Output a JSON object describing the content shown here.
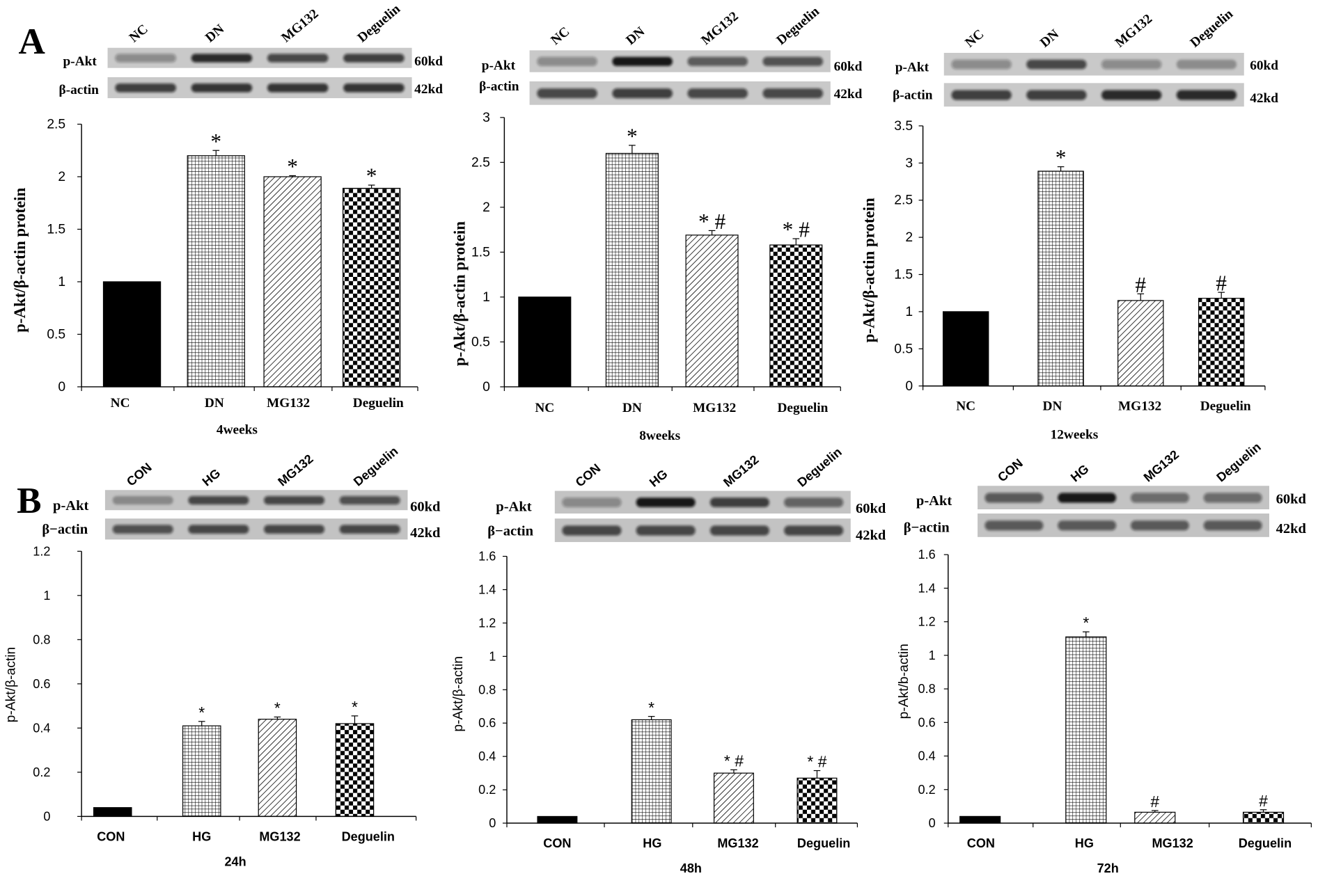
{
  "panel_labels": [
    "A",
    "B"
  ],
  "chart_data": [
    {
      "type": "bar",
      "categories": [
        "NC",
        "DN",
        "MG132",
        "Deguelin"
      ],
      "values": [
        1.0,
        2.2,
        2.0,
        1.89
      ],
      "errors": [
        0,
        0.05,
        0.01,
        0.03
      ],
      "annotations": [
        "",
        "*",
        "*",
        "*"
      ],
      "xlabel": "4weeks",
      "ylabel": "p-Akt/β-actin protein",
      "ylim": [
        0,
        2.5
      ],
      "yticks": [
        0,
        0.5,
        1,
        1.5,
        2,
        2.5
      ],
      "ytick_labels": [
        "0",
        "0.5",
        "1",
        "1.5",
        "2",
        "2.5"
      ],
      "blot": {
        "lanes": [
          "NC",
          "DN",
          "MG132",
          "Deguelin"
        ],
        "rows": [
          {
            "label": "p-Akt",
            "size": "60kd",
            "intensity": [
              0.35,
              0.85,
              0.7,
              0.75
            ]
          },
          {
            "label": "β-actin",
            "size": "42kd",
            "intensity": [
              0.75,
              0.8,
              0.8,
              0.8
            ]
          }
        ]
      }
    },
    {
      "type": "bar",
      "categories": [
        "NC",
        "DN",
        "MG132",
        "Deguelin"
      ],
      "values": [
        1.0,
        2.6,
        1.69,
        1.58
      ],
      "errors": [
        0,
        0.09,
        0.05,
        0.07
      ],
      "annotations": [
        "",
        "*",
        "* #",
        "* #"
      ],
      "xlabel": "8weeks",
      "ylabel": "p-Akt/β-actin protein",
      "ylim": [
        0,
        3
      ],
      "yticks": [
        0,
        0.5,
        1,
        1.5,
        2,
        2.5,
        3
      ],
      "ytick_labels": [
        "0",
        "0.5",
        "1",
        "1.5",
        "2",
        "2.5",
        "3"
      ],
      "blot": {
        "lanes": [
          "NC",
          "DN",
          "MG132",
          "Deguelin"
        ],
        "rows": [
          {
            "label": "p-Akt",
            "size": "60kd",
            "intensity": [
              0.35,
              0.95,
              0.6,
              0.65
            ]
          },
          {
            "label": "β-actin",
            "size": "42kd",
            "intensity": [
              0.7,
              0.75,
              0.7,
              0.7
            ]
          }
        ]
      }
    },
    {
      "type": "bar",
      "categories": [
        "NC",
        "DN",
        "MG132",
        "Deguelin"
      ],
      "values": [
        1.0,
        2.89,
        1.15,
        1.18
      ],
      "errors": [
        0,
        0.06,
        0.09,
        0.08
      ],
      "annotations": [
        "",
        "*",
        "#",
        "#"
      ],
      "xlabel": "12weeks",
      "ylabel": "p-Akt/β-actin protein",
      "ylim": [
        0,
        3.5
      ],
      "yticks": [
        0,
        0.5,
        1,
        1.5,
        2,
        2.5,
        3,
        3.5
      ],
      "ytick_labels": [
        "0",
        "0.5",
        "1",
        "1.5",
        "2",
        "2.5",
        "3",
        "3.5"
      ],
      "blot": {
        "lanes": [
          "NC",
          "DN",
          "MG132",
          "Deguelin"
        ],
        "rows": [
          {
            "label": "p-Akt",
            "size": "60kd",
            "intensity": [
              0.35,
              0.7,
              0.35,
              0.3
            ]
          },
          {
            "label": "β-actin",
            "size": "42kd",
            "intensity": [
              0.75,
              0.75,
              0.85,
              0.85
            ]
          }
        ]
      }
    },
    {
      "type": "bar",
      "categories": [
        "CON",
        "HG",
        "MG132",
        "Deguelin"
      ],
      "values": [
        0.04,
        0.41,
        0.44,
        0.42
      ],
      "errors": [
        0,
        0.02,
        0.01,
        0.035
      ],
      "annotations": [
        "",
        "*",
        "*",
        "*"
      ],
      "xlabel": "24h",
      "ylabel": "p-Akt/β-actin",
      "ylim": [
        0,
        1.2
      ],
      "yticks": [
        0,
        0.2,
        0.4,
        0.6,
        0.8,
        1,
        1.2
      ],
      "ytick_labels": [
        "0",
        "0.2",
        "0.4",
        "0.6",
        "0.8",
        "1",
        "1.2"
      ],
      "blot": {
        "lanes": [
          "CON",
          "HG",
          "MG132",
          "Deguelin"
        ],
        "rows": [
          {
            "label": "p-Akt",
            "size": "60kd",
            "intensity": [
              0.3,
              0.7,
              0.7,
              0.65
            ]
          },
          {
            "label": "β−actin",
            "size": "42kd",
            "intensity": [
              0.65,
              0.7,
              0.7,
              0.7
            ]
          }
        ]
      }
    },
    {
      "type": "bar",
      "categories": [
        "CON",
        "HG",
        "MG132",
        "Deguelin"
      ],
      "values": [
        0.04,
        0.62,
        0.3,
        0.27
      ],
      "errors": [
        0,
        0.02,
        0.02,
        0.045
      ],
      "annotations": [
        "",
        "*",
        "* #",
        "* #"
      ],
      "xlabel": "48h",
      "ylabel": "p-Akt/β-actin",
      "ylim": [
        0,
        1.6
      ],
      "yticks": [
        0,
        0.2,
        0.4,
        0.6,
        0.8,
        1,
        1.2,
        1.4,
        1.6
      ],
      "ytick_labels": [
        "0",
        "0.2",
        "0.4",
        "0.6",
        "0.8",
        "1",
        "1.2",
        "1.4",
        "1.6"
      ],
      "blot": {
        "lanes": [
          "CON",
          "HG",
          "MG132",
          "Deguelin"
        ],
        "rows": [
          {
            "label": "p-Akt",
            "size": "60kd",
            "intensity": [
              0.35,
              0.95,
              0.75,
              0.55
            ]
          },
          {
            "label": "β−actin",
            "size": "42kd",
            "intensity": [
              0.7,
              0.7,
              0.7,
              0.7
            ]
          }
        ]
      }
    },
    {
      "type": "bar",
      "categories": [
        "CON",
        "HG",
        "MG132",
        "Deguelin"
      ],
      "values": [
        0.04,
        1.11,
        0.065,
        0.065
      ],
      "errors": [
        0,
        0.03,
        0.01,
        0.015
      ],
      "annotations": [
        "",
        "*",
        "#",
        "#"
      ],
      "xlabel": "72h",
      "ylabel": "p-Akt/b-actin",
      "ylim": [
        0,
        1.6
      ],
      "yticks": [
        0,
        0.2,
        0.4,
        0.6,
        0.8,
        1,
        1.2,
        1.4,
        1.6
      ],
      "ytick_labels": [
        "0",
        "0.2",
        "0.4",
        "0.6",
        "0.8",
        "1",
        "1.2",
        "1.4",
        "1.6"
      ],
      "blot": {
        "lanes": [
          "CON",
          "HG",
          "MG132",
          "Deguelin"
        ],
        "rows": [
          {
            "label": "p-Akt",
            "size": "60kd",
            "intensity": [
              0.6,
              0.95,
              0.5,
              0.5
            ]
          },
          {
            "label": "β−actin",
            "size": "42kd",
            "intensity": [
              0.6,
              0.6,
              0.6,
              0.6
            ]
          }
        ]
      }
    }
  ]
}
